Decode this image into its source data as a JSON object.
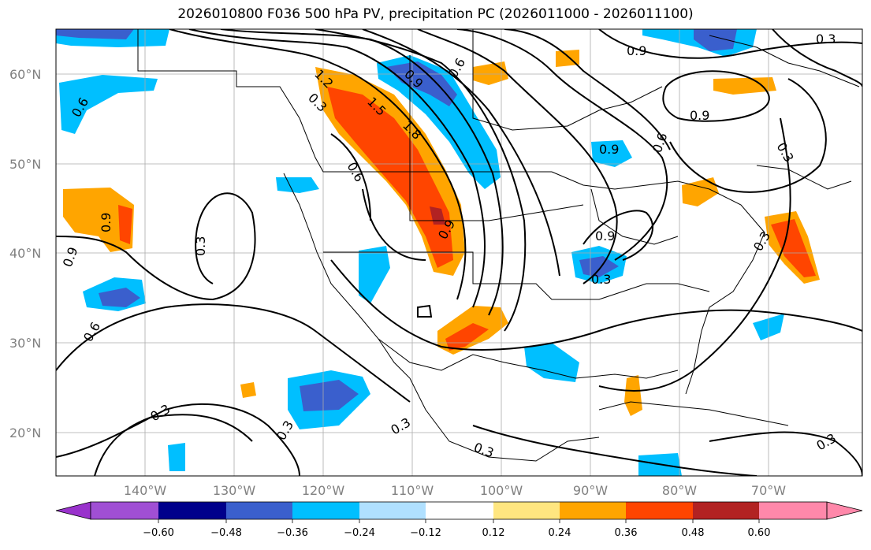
{
  "title": "2026010800 F036 500 hPa PV, precipitation PC (2026011000 - 2026011100)",
  "map": {
    "lat_labels": [
      "60°N",
      "50°N",
      "40°N",
      "30°N",
      "20°N"
    ],
    "lon_labels": [
      "140°W",
      "130°W",
      "120°W",
      "110°W",
      "100°W",
      "90°W",
      "80°W",
      "70°W"
    ],
    "contour_labels": [
      "0.6",
      "0.9",
      "0.3",
      "1.5",
      "1.8",
      "1.2",
      "0.9",
      "0.3",
      "0.6",
      "0.9",
      "0.3",
      "0.9",
      "0.6",
      "0.9",
      "0.9",
      "0.3",
      "0.9",
      "0.9",
      "0.3",
      "0.6",
      "0.3",
      "0.3",
      "0.3",
      "0.3",
      "0.3",
      "0.3",
      "0.6"
    ],
    "colors": {
      "very_negative": "#9932cc",
      "neg_060": "#00008b",
      "neg_048": "#3a5fcd",
      "neg_036": "#00bfff",
      "neg_024": "#b0e0ff",
      "pos_012": "#ffe680",
      "pos_024": "#ffa500",
      "pos_036": "#ff4500",
      "pos_048": "#b22222",
      "very_positive": "#ff88aa"
    }
  },
  "colorbar": {
    "ticks": [
      "−0.60",
      "−0.48",
      "−0.36",
      "−0.24",
      "−0.12",
      "0.12",
      "0.24",
      "0.36",
      "0.48",
      "0.60"
    ]
  }
}
